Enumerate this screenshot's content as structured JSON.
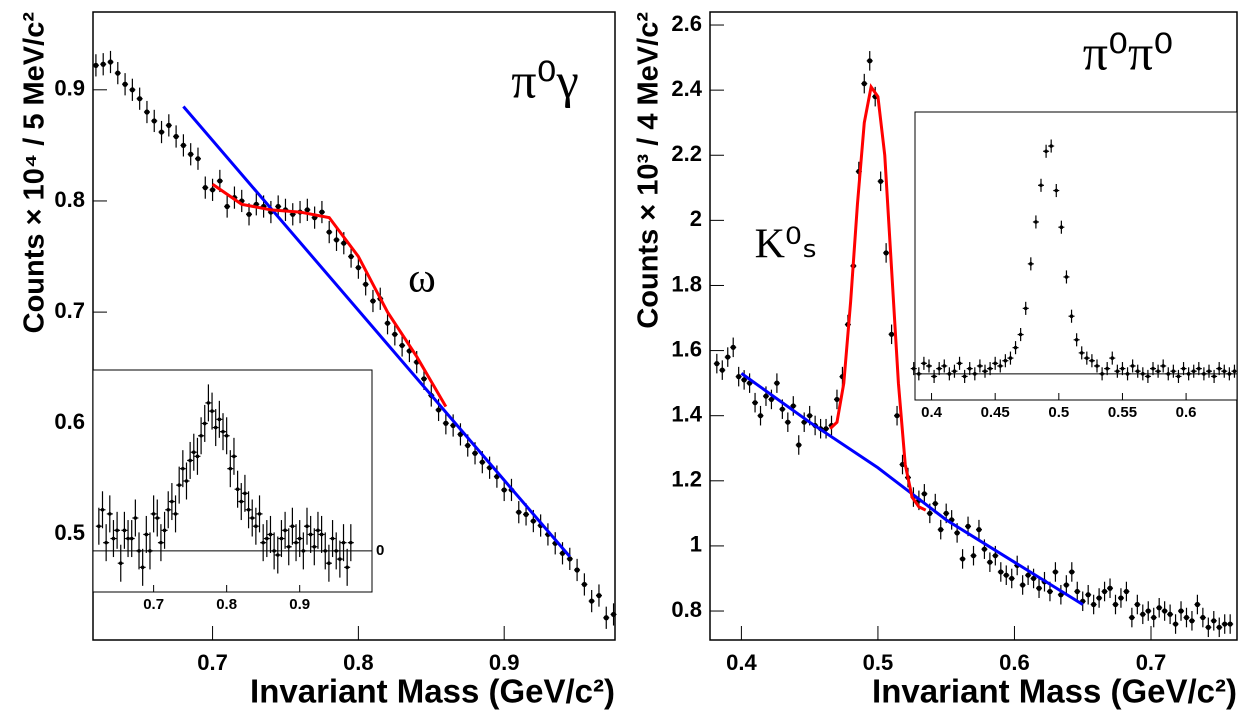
{
  "chart_data": [
    {
      "type": "scatter",
      "xlabel": "Invariant Mass (GeV/c²)",
      "ylabel": "Counts × 10⁴ / 5 MeV/c²",
      "annotations": [
        "π⁰γ",
        "ω"
      ],
      "xlim": [
        0.618,
        0.976
      ],
      "ylim": [
        0.405,
        0.97
      ],
      "xticks": [
        0.7,
        0.8,
        0.9
      ],
      "yticks": [
        0.5,
        0.6,
        0.7,
        0.8,
        0.9
      ],
      "series": [
        {
          "type": "scatter",
          "color": "#000000",
          "yerr": 0.01,
          "x": [
            0.62,
            0.625,
            0.63,
            0.635,
            0.64,
            0.645,
            0.65,
            0.655,
            0.66,
            0.665,
            0.67,
            0.675,
            0.68,
            0.685,
            0.69,
            0.695,
            0.7,
            0.705,
            0.71,
            0.715,
            0.72,
            0.725,
            0.73,
            0.735,
            0.74,
            0.745,
            0.75,
            0.755,
            0.76,
            0.765,
            0.77,
            0.775,
            0.78,
            0.785,
            0.79,
            0.795,
            0.8,
            0.805,
            0.81,
            0.815,
            0.82,
            0.825,
            0.83,
            0.835,
            0.84,
            0.845,
            0.85,
            0.855,
            0.86,
            0.865,
            0.87,
            0.875,
            0.88,
            0.885,
            0.89,
            0.895,
            0.9,
            0.905,
            0.91,
            0.915,
            0.92,
            0.925,
            0.93,
            0.935,
            0.94,
            0.945,
            0.95,
            0.955,
            0.96,
            0.965,
            0.97,
            0.975
          ],
          "values": [
            0.922,
            0.923,
            0.925,
            0.915,
            0.905,
            0.9,
            0.892,
            0.88,
            0.872,
            0.862,
            0.868,
            0.858,
            0.85,
            0.842,
            0.838,
            0.812,
            0.81,
            0.818,
            0.795,
            0.803,
            0.8,
            0.788,
            0.797,
            0.795,
            0.79,
            0.795,
            0.792,
            0.788,
            0.79,
            0.792,
            0.785,
            0.79,
            0.772,
            0.765,
            0.762,
            0.75,
            0.74,
            0.725,
            0.71,
            0.712,
            0.69,
            0.68,
            0.67,
            0.665,
            0.655,
            0.64,
            0.625,
            0.612,
            0.6,
            0.598,
            0.59,
            0.58,
            0.573,
            0.565,
            0.56,
            0.552,
            0.54,
            0.54,
            0.52,
            0.518,
            0.512,
            0.508,
            0.5,
            0.492,
            0.483,
            0.478,
            0.468,
            0.455,
            0.44,
            0.445,
            0.425,
            0.428
          ]
        },
        {
          "type": "line",
          "color": "#0000ff",
          "x": [
            0.68,
            0.945
          ],
          "values": [
            0.885,
            0.48
          ]
        },
        {
          "type": "line",
          "color": "#ff0000",
          "x": [
            0.7,
            0.72,
            0.74,
            0.76,
            0.78,
            0.8,
            0.82,
            0.84,
            0.86
          ],
          "values": [
            0.815,
            0.797,
            0.792,
            0.79,
            0.785,
            0.75,
            0.7,
            0.66,
            0.615
          ]
        }
      ],
      "inset": {
        "type": "scatter",
        "xlim": [
          0.617,
          0.999
        ],
        "ylim": [
          -1,
          4.4
        ],
        "xticks": [
          0.7,
          0.8,
          0.9
        ],
        "yticks": [
          0
        ],
        "series": [
          {
            "type": "scatter",
            "color": "#000000",
            "yerr": 0.45,
            "x": [
              0.625,
              0.63,
              0.635,
              0.64,
              0.645,
              0.65,
              0.655,
              0.66,
              0.665,
              0.67,
              0.675,
              0.68,
              0.685,
              0.69,
              0.695,
              0.7,
              0.705,
              0.71,
              0.715,
              0.72,
              0.725,
              0.73,
              0.735,
              0.74,
              0.745,
              0.75,
              0.755,
              0.76,
              0.765,
              0.77,
              0.775,
              0.78,
              0.785,
              0.79,
              0.795,
              0.8,
              0.805,
              0.81,
              0.815,
              0.82,
              0.825,
              0.83,
              0.835,
              0.84,
              0.845,
              0.85,
              0.855,
              0.86,
              0.865,
              0.87,
              0.875,
              0.88,
              0.885,
              0.89,
              0.895,
              0.9,
              0.905,
              0.91,
              0.915,
              0.92,
              0.925,
              0.93,
              0.935,
              0.94,
              0.945,
              0.95,
              0.955,
              0.96,
              0.965,
              0.97
            ],
            "values": [
              0.6,
              1.0,
              0.2,
              0.9,
              0.3,
              0.5,
              -0.3,
              0.5,
              0.3,
              0.3,
              0.8,
              0.0,
              -0.4,
              0.4,
              0.0,
              0.9,
              0.8,
              0.2,
              0.5,
              1.0,
              1.2,
              0.9,
              1.6,
              2.0,
              1.7,
              2.2,
              2.4,
              2.3,
              2.8,
              3.1,
              3.6,
              3.4,
              3.0,
              3.2,
              2.9,
              2.8,
              2.0,
              2.3,
              1.5,
              1.2,
              1.4,
              1.0,
              0.8,
              0.6,
              0.9,
              0.2,
              0.3,
              0.4,
              0.0,
              -0.1,
              0.3,
              0.5,
              0.1,
              0.6,
              0.2,
              0.3,
              0.0,
              0.6,
              0.4,
              0.1,
              0.5,
              0.4,
              0.0,
              -0.3,
              0.3,
              0.0,
              -0.2,
              0.2,
              -0.4,
              0.2
            ]
          }
        ]
      }
    },
    {
      "type": "scatter",
      "xlabel": "Invariant Mass (GeV/c²)",
      "ylabel": "Counts × 10³ / 4 MeV/c²",
      "annotations": [
        "π⁰π⁰",
        "K⁰ₛ"
      ],
      "xlim": [
        0.377,
        0.763
      ],
      "ylim": [
        0.711,
        2.64
      ],
      "xticks": [
        0.4,
        0.5,
        0.6,
        0.7
      ],
      "yticks": [
        0.8,
        1,
        1.2,
        1.4,
        1.6,
        1.8,
        2,
        2.2,
        2.4,
        2.6
      ],
      "series": [
        {
          "type": "scatter",
          "color": "#000000",
          "yerr": 0.03,
          "x": [
            0.382,
            0.386,
            0.39,
            0.394,
            0.398,
            0.402,
            0.406,
            0.41,
            0.414,
            0.418,
            0.422,
            0.426,
            0.43,
            0.434,
            0.438,
            0.442,
            0.446,
            0.45,
            0.454,
            0.458,
            0.462,
            0.466,
            0.47,
            0.474,
            0.478,
            0.482,
            0.486,
            0.49,
            0.494,
            0.498,
            0.502,
            0.506,
            0.51,
            0.514,
            0.518,
            0.522,
            0.526,
            0.53,
            0.534,
            0.538,
            0.542,
            0.546,
            0.55,
            0.554,
            0.558,
            0.562,
            0.566,
            0.57,
            0.574,
            0.578,
            0.582,
            0.586,
            0.59,
            0.594,
            0.598,
            0.602,
            0.606,
            0.61,
            0.614,
            0.618,
            0.622,
            0.626,
            0.63,
            0.634,
            0.638,
            0.642,
            0.646,
            0.65,
            0.654,
            0.658,
            0.662,
            0.666,
            0.67,
            0.674,
            0.678,
            0.682,
            0.686,
            0.69,
            0.694,
            0.698,
            0.702,
            0.706,
            0.71,
            0.714,
            0.718,
            0.722,
            0.726,
            0.73,
            0.734,
            0.738,
            0.742,
            0.746,
            0.75,
            0.754,
            0.758
          ],
          "values": [
            1.56,
            1.54,
            1.58,
            1.61,
            1.52,
            1.51,
            1.5,
            1.44,
            1.4,
            1.46,
            1.45,
            1.5,
            1.42,
            1.38,
            1.43,
            1.31,
            1.38,
            1.4,
            1.37,
            1.36,
            1.36,
            1.37,
            1.45,
            1.52,
            1.68,
            1.86,
            2.15,
            2.42,
            2.49,
            2.38,
            2.12,
            1.9,
            1.65,
            1.4,
            1.25,
            1.21,
            1.15,
            1.14,
            1.16,
            1.1,
            1.13,
            1.05,
            1.1,
            1.08,
            1.04,
            0.96,
            1.06,
            0.97,
            1.05,
            0.99,
            0.95,
            0.97,
            0.92,
            0.91,
            0.9,
            0.94,
            0.88,
            0.91,
            0.9,
            0.87,
            0.89,
            0.86,
            0.92,
            0.85,
            0.88,
            0.92,
            0.86,
            0.83,
            0.85,
            0.82,
            0.84,
            0.86,
            0.87,
            0.82,
            0.84,
            0.86,
            0.78,
            0.82,
            0.79,
            0.8,
            0.78,
            0.81,
            0.8,
            0.79,
            0.76,
            0.8,
            0.78,
            0.77,
            0.82,
            0.78,
            0.75,
            0.77,
            0.75,
            0.76,
            0.76
          ]
        },
        {
          "type": "line",
          "color": "#0000ff",
          "x": [
            0.4,
            0.45,
            0.5,
            0.55,
            0.6,
            0.65
          ],
          "values": [
            1.53,
            1.38,
            1.24,
            1.08,
            0.95,
            0.82
          ]
        },
        {
          "type": "line",
          "color": "#ff0000",
          "x": [
            0.465,
            0.47,
            0.475,
            0.48,
            0.485,
            0.49,
            0.495,
            0.5,
            0.505,
            0.51,
            0.515,
            0.52,
            0.525,
            0.53,
            0.535
          ],
          "values": [
            1.36,
            1.38,
            1.5,
            1.75,
            2.05,
            2.3,
            2.41,
            2.38,
            2.2,
            1.85,
            1.5,
            1.25,
            1.15,
            1.12,
            1.11
          ]
        }
      ],
      "inset": {
        "type": "scatter",
        "xlim": [
          0.387,
          0.64
        ],
        "ylim": [
          -0.1,
          1.0
        ],
        "xticks": [
          0.4,
          0.45,
          0.5,
          0.55,
          0.6
        ],
        "hline": 0,
        "series": [
          {
            "type": "scatter",
            "color": "#000000",
            "yerr": 0.025,
            "x": [
              0.386,
              0.39,
              0.394,
              0.398,
              0.402,
              0.406,
              0.41,
              0.414,
              0.418,
              0.422,
              0.426,
              0.43,
              0.434,
              0.438,
              0.442,
              0.446,
              0.45,
              0.454,
              0.458,
              0.462,
              0.466,
              0.47,
              0.474,
              0.478,
              0.482,
              0.486,
              0.49,
              0.494,
              0.498,
              0.502,
              0.506,
              0.51,
              0.514,
              0.518,
              0.522,
              0.526,
              0.53,
              0.534,
              0.538,
              0.542,
              0.546,
              0.55,
              0.554,
              0.558,
              0.562,
              0.566,
              0.57,
              0.574,
              0.578,
              0.582,
              0.586,
              0.59,
              0.594,
              0.598,
              0.602,
              0.606,
              0.61,
              0.614,
              0.618,
              0.622,
              0.626,
              0.63,
              0.634,
              0.638
            ],
            "values": [
              0.02,
              0.0,
              0.04,
              0.03,
              -0.01,
              0.02,
              0.03,
              0.0,
              0.01,
              0.04,
              -0.01,
              0.02,
              0.0,
              0.03,
              0.01,
              0.02,
              0.04,
              0.03,
              0.05,
              0.06,
              0.1,
              0.15,
              0.25,
              0.42,
              0.58,
              0.72,
              0.85,
              0.87,
              0.7,
              0.56,
              0.37,
              0.22,
              0.13,
              0.08,
              0.06,
              0.05,
              0.03,
              0.0,
              0.02,
              0.06,
              0.01,
              0.02,
              0.0,
              0.03,
              0.01,
              0.0,
              -0.01,
              0.02,
              0.01,
              0.03,
              0.0,
              0.01,
              -0.01,
              0.02,
              0.0,
              0.01,
              0.02,
              0.0,
              0.01,
              -0.01,
              0.02,
              0.01,
              0.0,
              0.01
            ]
          }
        ]
      }
    }
  ]
}
